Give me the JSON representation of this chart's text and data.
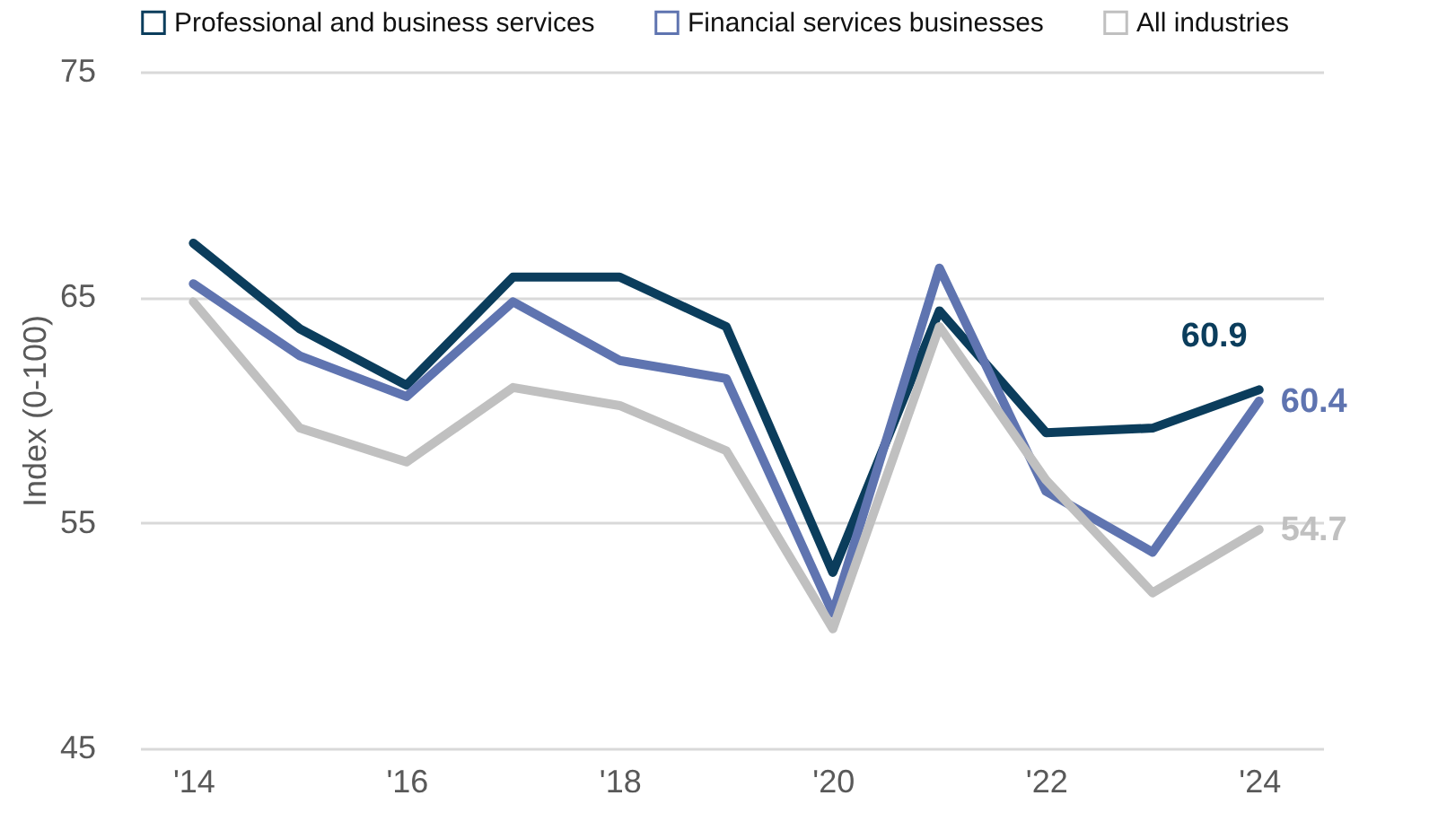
{
  "chart_data": {
    "type": "line",
    "ylabel": "Index (0-100)",
    "x": [
      2014,
      2015,
      2016,
      2017,
      2018,
      2019,
      2020,
      2021,
      2022,
      2023,
      2024
    ],
    "xlim": [
      2013.5,
      2024.6
    ],
    "xticks": [
      {
        "value": 2014,
        "label": "'14"
      },
      {
        "value": 2016,
        "label": "'16"
      },
      {
        "value": 2018,
        "label": "'18"
      },
      {
        "value": 2020,
        "label": "'20"
      },
      {
        "value": 2022,
        "label": "'22"
      },
      {
        "value": 2024,
        "label": "'24"
      }
    ],
    "ylim": [
      45,
      75
    ],
    "yticks": [
      45,
      55,
      65,
      75
    ],
    "grid": "y",
    "legend": "top",
    "marker": "none",
    "line_style": "solid",
    "series": [
      {
        "name": "Professional and business services",
        "color": "#0b3d5c",
        "values": [
          67.4,
          63.6,
          61.1,
          65.9,
          65.9,
          63.7,
          52.8,
          64.4,
          59.0,
          59.2,
          60.9
        ],
        "value_labels": [
          null,
          null,
          null,
          null,
          null,
          null,
          null,
          null,
          null,
          null,
          "60.9"
        ]
      },
      {
        "name": "Financial services businesses",
        "color": "#5f74b0",
        "values": [
          65.6,
          62.4,
          60.6,
          64.8,
          62.2,
          61.4,
          51.0,
          66.3,
          56.4,
          53.7,
          60.4
        ],
        "value_labels": [
          null,
          null,
          null,
          null,
          null,
          null,
          null,
          null,
          null,
          null,
          "60.4"
        ]
      },
      {
        "name": "All industries",
        "color": "#c0c0c0",
        "values": [
          64.8,
          59.2,
          57.7,
          61.0,
          60.2,
          58.2,
          50.3,
          63.7,
          56.9,
          51.9,
          54.7
        ],
        "value_labels": [
          null,
          null,
          null,
          null,
          null,
          null,
          null,
          null,
          null,
          null,
          "54.7"
        ]
      }
    ]
  }
}
